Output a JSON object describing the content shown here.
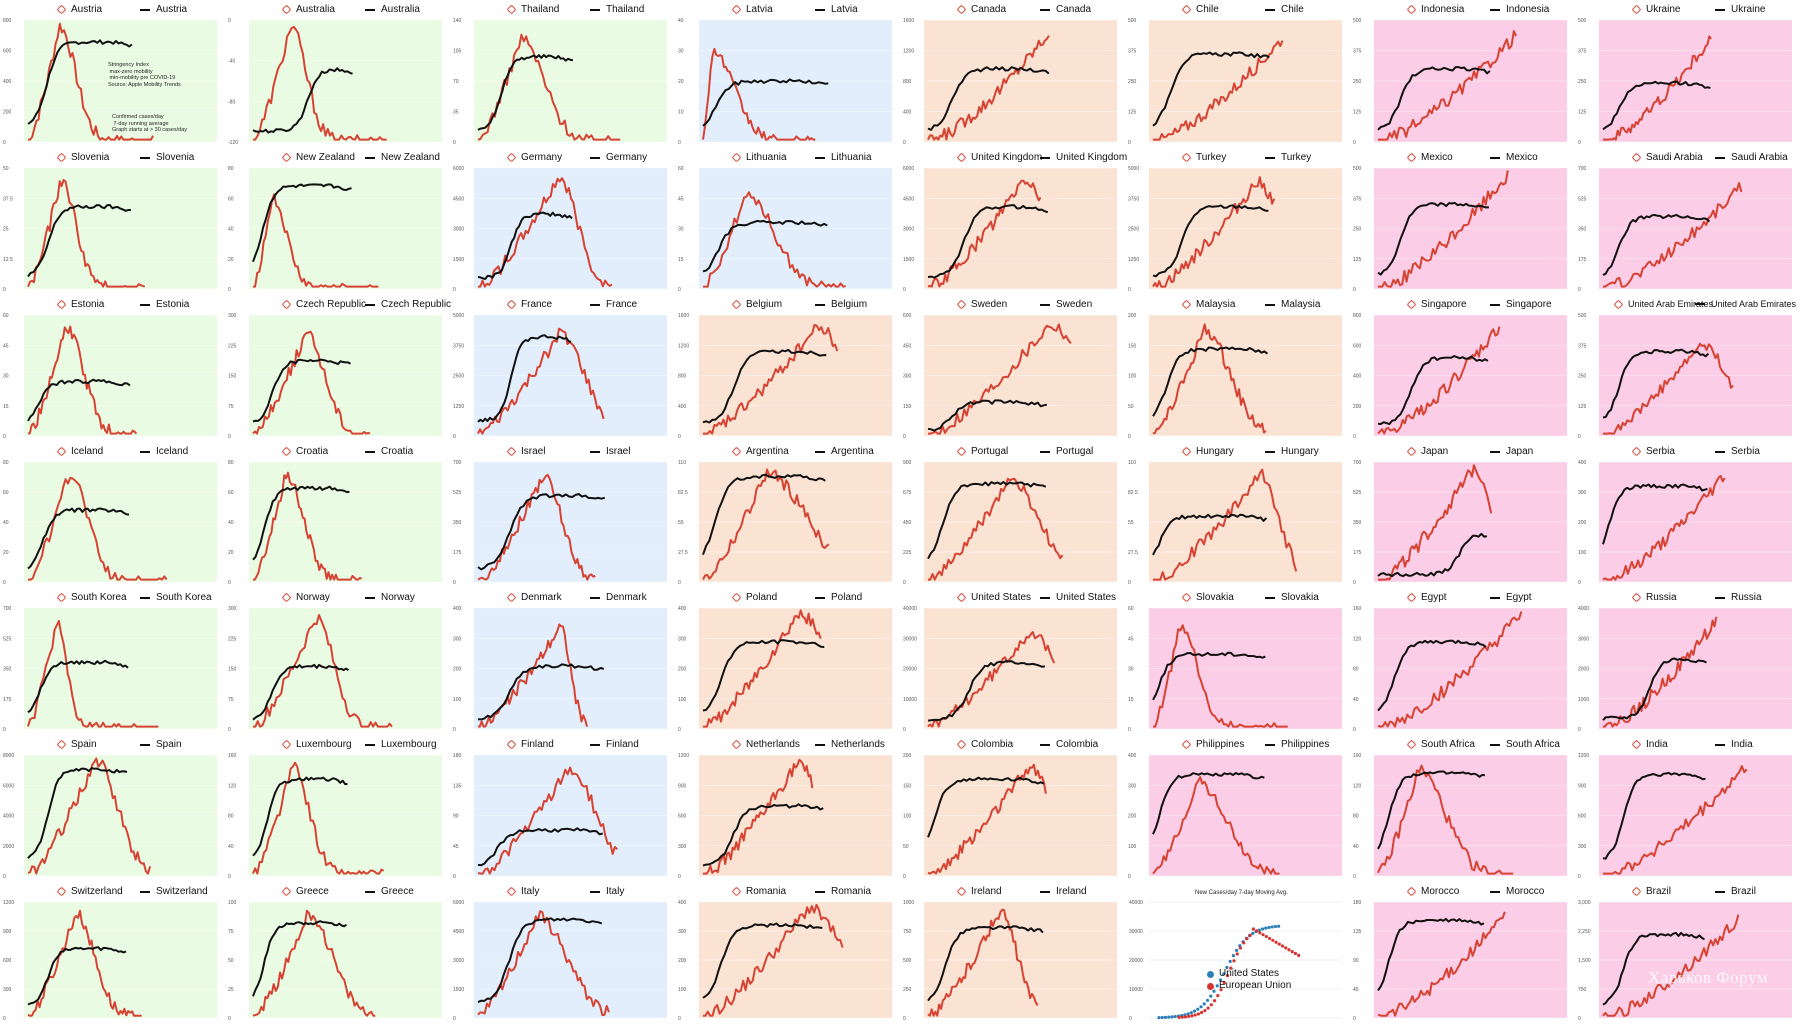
{
  "colors": {
    "cases": "#d64333",
    "mobility": "#111111",
    "bg_green": "#eafbe4",
    "bg_blue": "#e2eefb",
    "bg_peach": "#fbe3d4",
    "bg_pink": "#fbcde6",
    "us": "#2d7fb8",
    "eu": "#d63333"
  },
  "annotations": {
    "austria_mobility_note": "Stringency Index\n max-zero mobility\n min-mobility pre COVID-19\nSource: Apple Mobility Trends",
    "austria_cases_note": "Confirmed cases/day\n 7-day running average\nGraph starts at > 30 cases/day"
  },
  "watermark": "Харьков Форум",
  "chart_data": [
    {
      "type": "line",
      "country": "Austria",
      "bg": "green",
      "yticks": [
        "0",
        "200",
        "400",
        "600",
        "800"
      ],
      "peak": 0.25,
      "width": 0.2,
      "plateau": 0.75,
      "rise": 0.18,
      "cmax": 0.95,
      "mmax": 0.82
    },
    {
      "type": "line",
      "country": "Australia",
      "bg": "green",
      "yticks": [
        "-120",
        "-80",
        "-40",
        "0"
      ],
      "peak": 0.28,
      "width": 0.18,
      "plateau": 0.55,
      "rise": 0.55,
      "cmax": 0.95,
      "mmax": 0.6
    },
    {
      "type": "line",
      "country": "Thailand",
      "bg": "green",
      "yticks": [
        "0",
        "35",
        "70",
        "105",
        "140"
      ],
      "peak": 0.3,
      "width": 0.25,
      "plateau": 0.65,
      "rise": 0.25,
      "cmax": 0.85,
      "mmax": 0.7
    },
    {
      "type": "line",
      "country": "Latvia",
      "bg": "blue",
      "yticks": [
        "0",
        "10",
        "20",
        "30",
        "40"
      ],
      "peak": 0.08,
      "width": 0.3,
      "plateau": 0.5,
      "rise": 0.1,
      "cmax": 0.75,
      "mmax": 0.5
    },
    {
      "type": "line",
      "country": "Canada",
      "bg": "peach",
      "yticks": [
        "0",
        "400",
        "800",
        "1200",
        "1600"
      ],
      "peak": 0.95,
      "width": 0.5,
      "plateau": 0.65,
      "rise": 0.2,
      "cmax": 0.9,
      "mmax": 0.6
    },
    {
      "type": "line",
      "country": "Chile",
      "bg": "peach",
      "yticks": [
        "0",
        "125",
        "250",
        "375",
        "500"
      ],
      "peak": 0.95,
      "width": 0.45,
      "plateau": 0.7,
      "rise": 0.15,
      "cmax": 0.85,
      "mmax": 0.72
    },
    {
      "type": "line",
      "country": "Indonesia",
      "bg": "pink",
      "yticks": [
        "0",
        "125",
        "250",
        "375",
        "500"
      ],
      "peak": 0.95,
      "width": 0.5,
      "plateau": 0.5,
      "rise": 0.2,
      "cmax": 0.88,
      "mmax": 0.6
    },
    {
      "type": "line",
      "country": "Ukraine",
      "bg": "pink",
      "yticks": [
        "0",
        "125",
        "250",
        "375",
        "500"
      ],
      "peak": 0.95,
      "width": 0.4,
      "plateau": 0.45,
      "rise": 0.15,
      "cmax": 0.85,
      "mmax": 0.48
    },
    {
      "type": "line",
      "country": "Slovenia",
      "bg": "green",
      "yticks": [
        "0",
        "12.5",
        "25",
        "37.5",
        "50"
      ],
      "peak": 0.28,
      "width": 0.2,
      "plateau": 0.75,
      "rise": 0.2,
      "cmax": 0.9,
      "mmax": 0.68
    },
    {
      "type": "line",
      "country": "New Zealand",
      "bg": "green",
      "yticks": [
        "0",
        "20",
        "40",
        "60",
        "80"
      ],
      "peak": 0.15,
      "width": 0.18,
      "plateau": 0.85,
      "rise": 0.1,
      "cmax": 0.75,
      "mmax": 0.85
    },
    {
      "type": "line",
      "country": "Germany",
      "bg": "blue",
      "yticks": [
        "0",
        "1500",
        "3000",
        "4500",
        "6000"
      ],
      "peak": 0.6,
      "width": 0.22,
      "plateau": 0.7,
      "rise": 0.35,
      "cmax": 0.92,
      "mmax": 0.62
    },
    {
      "type": "line",
      "country": "Lithuania",
      "bg": "blue",
      "yticks": [
        "0",
        "15",
        "30",
        "45",
        "60"
      ],
      "peak": 0.3,
      "width": 0.3,
      "plateau": 0.7,
      "rise": 0.12,
      "cmax": 0.8,
      "mmax": 0.55
    },
    {
      "type": "line",
      "country": "United Kingdom",
      "bg": "peach",
      "yticks": [
        "0",
        "1500",
        "3000",
        "4500",
        "6000"
      ],
      "peak": 0.85,
      "width": 0.35,
      "plateau": 0.7,
      "rise": 0.3,
      "cmax": 0.9,
      "mmax": 0.68
    },
    {
      "type": "line",
      "country": "Turkey",
      "bg": "peach",
      "yticks": [
        "0",
        "1250",
        "2500",
        "3750",
        "5000"
      ],
      "peak": 0.85,
      "width": 0.35,
      "plateau": 0.6,
      "rise": 0.25,
      "cmax": 0.88,
      "mmax": 0.68
    },
    {
      "type": "line",
      "country": "Mexico",
      "bg": "pink",
      "yticks": [
        "0",
        "125",
        "250",
        "375",
        "500"
      ],
      "peak": 0.95,
      "width": 0.5,
      "plateau": 0.55,
      "rise": 0.2,
      "cmax": 0.95,
      "mmax": 0.7
    },
    {
      "type": "line",
      "country": "Saudi Arabia",
      "bg": "pink",
      "yticks": [
        "0",
        "175",
        "350",
        "525",
        "700"
      ],
      "peak": 0.95,
      "width": 0.35,
      "plateau": 0.55,
      "rise": 0.15,
      "cmax": 0.85,
      "mmax": 0.6
    },
    {
      "type": "line",
      "country": "Estonia",
      "bg": "green",
      "yticks": [
        "0",
        "15",
        "30",
        "45",
        "60"
      ],
      "peak": 0.35,
      "width": 0.25,
      "plateau": 0.5,
      "rise": 0.1,
      "cmax": 0.9,
      "mmax": 0.45
    },
    {
      "type": "line",
      "country": "Czech Republic",
      "bg": "green",
      "yticks": [
        "0",
        "75",
        "150",
        "225",
        "300"
      ],
      "peak": 0.45,
      "width": 0.25,
      "plateau": 0.6,
      "rise": 0.2,
      "cmax": 0.85,
      "mmax": 0.62
    },
    {
      "type": "line",
      "country": "France",
      "bg": "blue",
      "yticks": [
        "0",
        "1250",
        "2500",
        "3750",
        "5000"
      ],
      "peak": 0.65,
      "width": 0.3,
      "plateau": 0.82,
      "rise": 0.35,
      "cmax": 0.85,
      "mmax": 0.82
    },
    {
      "type": "line",
      "country": "Belgium",
      "bg": "peach",
      "yticks": [
        "0",
        "400",
        "800",
        "1200",
        "1600"
      ],
      "peak": 0.85,
      "width": 0.35,
      "plateau": 0.72,
      "rise": 0.25,
      "cmax": 0.9,
      "mmax": 0.7
    },
    {
      "type": "line",
      "country": "Sweden",
      "bg": "peach",
      "yticks": [
        "0",
        "150",
        "300",
        "450",
        "600"
      ],
      "peak": 0.85,
      "width": 0.4,
      "plateau": 0.28,
      "rise": 0.2,
      "cmax": 0.92,
      "mmax": 0.28
    },
    {
      "type": "line",
      "country": "Malaysia",
      "bg": "peach",
      "yticks": [
        "0",
        "50",
        "100",
        "150",
        "200"
      ],
      "peak": 0.45,
      "width": 0.35,
      "plateau": 0.68,
      "rise": 0.12,
      "cmax": 0.88,
      "mmax": 0.72
    },
    {
      "type": "line",
      "country": "Singapore",
      "bg": "pink",
      "yticks": [
        "0",
        "200",
        "400",
        "600",
        "800"
      ],
      "peak": 0.95,
      "width": 0.3,
      "plateau": 0.5,
      "rise": 0.3,
      "cmax": 0.9,
      "mmax": 0.65
    },
    {
      "type": "line",
      "country": "United Arab Emirates",
      "bg": "pink",
      "yticks": [
        "0",
        "125",
        "250",
        "375",
        "500"
      ],
      "peak": 0.75,
      "width": 0.35,
      "plateau": 0.68,
      "rise": 0.15,
      "cmax": 0.75,
      "mmax": 0.7
    },
    {
      "type": "line",
      "country": "Iceland",
      "bg": "green",
      "yticks": [
        "0",
        "20",
        "40",
        "60",
        "80"
      ],
      "peak": 0.3,
      "width": 0.2,
      "plateau": 0.6,
      "rise": 0.15,
      "cmax": 0.92,
      "mmax": 0.6
    },
    {
      "type": "line",
      "country": "Croatia",
      "bg": "green",
      "yticks": [
        "0",
        "20",
        "40",
        "60",
        "80"
      ],
      "peak": 0.3,
      "width": 0.25,
      "plateau": 0.75,
      "rise": 0.12,
      "cmax": 0.9,
      "mmax": 0.78
    },
    {
      "type": "line",
      "country": "Israel",
      "bg": "blue",
      "yticks": [
        "0",
        "175",
        "350",
        "525",
        "700"
      ],
      "peak": 0.55,
      "width": 0.25,
      "plateau": 0.72,
      "rise": 0.25,
      "cmax": 0.88,
      "mmax": 0.72
    },
    {
      "type": "line",
      "country": "Argentina",
      "bg": "peach",
      "yticks": [
        "0",
        "27.5",
        "55",
        "82.5",
        "110"
      ],
      "peak": 0.5,
      "width": 0.5,
      "plateau": 0.85,
      "rise": 0.1,
      "cmax": 0.9,
      "mmax": 0.88
    },
    {
      "type": "line",
      "country": "Portugal",
      "bg": "peach",
      "yticks": [
        "0",
        "225",
        "450",
        "675",
        "900"
      ],
      "peak": 0.6,
      "width": 0.35,
      "plateau": 0.82,
      "rise": 0.12,
      "cmax": 0.85,
      "mmax": 0.82
    },
    {
      "type": "line",
      "country": "Hungary",
      "bg": "peach",
      "yticks": [
        "0",
        "27.5",
        "55",
        "82.5",
        "110"
      ],
      "peak": 0.75,
      "width": 0.2,
      "plateau": 0.6,
      "rise": 0.05,
      "cmax": 0.9,
      "mmax": 0.55
    },
    {
      "type": "line",
      "country": "Japan",
      "bg": "pink",
      "yticks": [
        "0",
        "175",
        "350",
        "525",
        "700"
      ],
      "peak": 0.85,
      "width": 0.25,
      "plateau": 0.42,
      "rise": 0.75,
      "cmax": 0.95,
      "mmax": 0.42
    },
    {
      "type": "line",
      "country": "Serbia",
      "bg": "pink",
      "yticks": [
        "0",
        "100",
        "200",
        "300",
        "400"
      ],
      "peak": 0.95,
      "width": 0.35,
      "plateau": 0.78,
      "rise": 0.05,
      "cmax": 0.9,
      "mmax": 0.8
    },
    {
      "type": "line",
      "country": "South Korea",
      "bg": "green",
      "yticks": [
        "0",
        "175",
        "350",
        "525",
        "700"
      ],
      "peak": 0.22,
      "width": 0.12,
      "plateau": 0.52,
      "rise": 0.12,
      "cmax": 0.88,
      "mmax": 0.55
    },
    {
      "type": "line",
      "country": "Norway",
      "bg": "green",
      "yticks": [
        "0",
        "75",
        "150",
        "225",
        "300"
      ],
      "peak": 0.45,
      "width": 0.2,
      "plateau": 0.52,
      "rise": 0.2,
      "cmax": 0.92,
      "mmax": 0.52
    },
    {
      "type": "line",
      "country": "Denmark",
      "bg": "blue",
      "yticks": [
        "0",
        "100",
        "200",
        "300",
        "400"
      ],
      "peak": 0.75,
      "width": 0.15,
      "plateau": 0.5,
      "rise": 0.25,
      "cmax": 0.85,
      "mmax": 0.52
    },
    {
      "type": "line",
      "country": "Poland",
      "bg": "peach",
      "yticks": [
        "0",
        "100",
        "200",
        "300",
        "400"
      ],
      "peak": 0.8,
      "width": 0.45,
      "plateau": 0.72,
      "rise": 0.15,
      "cmax": 0.95,
      "mmax": 0.72
    },
    {
      "type": "line",
      "country": "United States",
      "bg": "peach",
      "yticks": [
        "0",
        "10000",
        "20000",
        "30000",
        "40000"
      ],
      "peak": 0.8,
      "width": 0.35,
      "plateau": 0.55,
      "rise": 0.35,
      "cmax": 0.8,
      "mmax": 0.55
    },
    {
      "type": "line",
      "country": "Slovakia",
      "bg": "pink",
      "yticks": [
        "0",
        "15",
        "30",
        "45",
        "60"
      ],
      "peak": 0.2,
      "width": 0.2,
      "plateau": 0.62,
      "rise": 0.05,
      "cmax": 0.85,
      "mmax": 0.62
    },
    {
      "type": "line",
      "country": "Egypt",
      "bg": "pink",
      "yticks": [
        "0",
        "40",
        "80",
        "120",
        "160"
      ],
      "peak": 0.9,
      "width": 0.3,
      "plateau": 0.7,
      "rise": 0.15,
      "cmax": 0.95,
      "mmax": 0.72
    },
    {
      "type": "line",
      "country": "Russia",
      "bg": "pink",
      "yticks": [
        "0",
        "1000",
        "2000",
        "3000",
        "4000"
      ],
      "peak": 0.95,
      "width": 0.35,
      "plateau": 0.58,
      "rise": 0.45,
      "cmax": 0.9,
      "mmax": 0.58
    },
    {
      "type": "line",
      "country": "Spain",
      "bg": "green",
      "yticks": [
        "0",
        "2000",
        "4000",
        "6000",
        "8000"
      ],
      "peak": 0.55,
      "width": 0.28,
      "plateau": 0.88,
      "rise": 0.2,
      "cmax": 0.95,
      "mmax": 0.88
    },
    {
      "type": "line",
      "country": "Luxembourg",
      "bg": "green",
      "yticks": [
        "0",
        "40",
        "80",
        "120",
        "160"
      ],
      "peak": 0.3,
      "width": 0.2,
      "plateau": 0.75,
      "rise": 0.15,
      "cmax": 0.9,
      "mmax": 0.8
    },
    {
      "type": "line",
      "country": "Finland",
      "bg": "blue",
      "yticks": [
        "0",
        "45",
        "90",
        "135",
        "180"
      ],
      "peak": 0.65,
      "width": 0.3,
      "plateau": 0.38,
      "rise": 0.15,
      "cmax": 0.88,
      "mmax": 0.38
    },
    {
      "type": "line",
      "country": "Netherlands",
      "bg": "peach",
      "yticks": [
        "0",
        "300",
        "600",
        "900",
        "1200"
      ],
      "peak": 0.85,
      "width": 0.4,
      "plateau": 0.58,
      "rise": 0.25,
      "cmax": 0.92,
      "mmax": 0.58
    },
    {
      "type": "line",
      "country": "Colombia",
      "bg": "peach",
      "yticks": [
        "0",
        "50",
        "100",
        "150",
        "200"
      ],
      "peak": 0.85,
      "width": 0.35,
      "plateau": 0.78,
      "rise": 0.05,
      "cmax": 0.9,
      "mmax": 0.8
    },
    {
      "type": "line",
      "country": "Philippines",
      "bg": "pink",
      "yticks": [
        "0",
        "100",
        "200",
        "300",
        "400"
      ],
      "peak": 0.35,
      "width": 0.35,
      "plateau": 0.84,
      "rise": 0.05,
      "cmax": 0.78,
      "mmax": 0.84
    },
    {
      "type": "line",
      "country": "South Africa",
      "bg": "pink",
      "yticks": [
        "0",
        "40",
        "80",
        "120",
        "160"
      ],
      "peak": 0.3,
      "width": 0.3,
      "plateau": 0.85,
      "rise": 0.1,
      "cmax": 0.88,
      "mmax": 0.85
    },
    {
      "type": "line",
      "country": "India",
      "bg": "pink",
      "yticks": [
        "0",
        "300",
        "600",
        "900",
        "1200"
      ],
      "peak": 0.95,
      "width": 0.45,
      "plateau": 0.82,
      "rise": 0.2,
      "cmax": 0.9,
      "mmax": 0.84
    },
    {
      "type": "line",
      "country": "Switzerland",
      "bg": "green",
      "yticks": [
        "0",
        "300",
        "600",
        "900",
        "1200"
      ],
      "peak": 0.42,
      "width": 0.25,
      "plateau": 0.58,
      "rise": 0.2,
      "cmax": 0.9,
      "mmax": 0.6
    },
    {
      "type": "line",
      "country": "Greece",
      "bg": "green",
      "yticks": [
        "0",
        "25",
        "50",
        "75",
        "100"
      ],
      "peak": 0.45,
      "width": 0.3,
      "plateau": 0.8,
      "rise": 0.12,
      "cmax": 0.9,
      "mmax": 0.82
    },
    {
      "type": "line",
      "country": "Italy",
      "bg": "blue",
      "yticks": [
        "0",
        "1500",
        "3000",
        "4500",
        "6000"
      ],
      "peak": 0.45,
      "width": 0.35,
      "plateau": 0.85,
      "rise": 0.25,
      "cmax": 0.88,
      "mmax": 0.85
    },
    {
      "type": "line",
      "country": "Romania",
      "bg": "peach",
      "yticks": [
        "0",
        "100",
        "200",
        "300",
        "400"
      ],
      "peak": 0.75,
      "width": 0.4,
      "plateau": 0.78,
      "rise": 0.15,
      "cmax": 0.95,
      "mmax": 0.8
    },
    {
      "type": "line",
      "country": "Ireland",
      "bg": "peach",
      "yticks": [
        "0",
        "250",
        "500",
        "750",
        "1000"
      ],
      "peak": 0.65,
      "width": 0.25,
      "plateau": 0.75,
      "rise": 0.15,
      "cmax": 0.92,
      "mmax": 0.78
    },
    {
      "type": "scatter",
      "country": "US-EU",
      "title": "New Cases/day 7-day Moving Avg.",
      "yticks": [
        "0",
        "10000",
        "20000",
        "30000",
        "40000"
      ],
      "series": [
        {
          "name": "United States",
          "color": "#2d7fb8"
        },
        {
          "name": "European Union",
          "color": "#d63333"
        }
      ]
    },
    {
      "type": "line",
      "country": "Morocco",
      "bg": "pink",
      "yticks": [
        "0",
        "45",
        "90",
        "135",
        "180"
      ],
      "peak": 0.9,
      "width": 0.35,
      "plateau": 0.82,
      "rise": 0.1,
      "cmax": 0.88,
      "mmax": 0.84
    },
    {
      "type": "line",
      "country": "Brazil",
      "bg": "pink",
      "yticks": [
        "0",
        "750",
        "1,500",
        "2,250",
        "3,000"
      ],
      "peak": 0.95,
      "width": 0.5,
      "plateau": 0.72,
      "rise": 0.2,
      "cmax": 0.85,
      "mmax": 0.72
    }
  ]
}
